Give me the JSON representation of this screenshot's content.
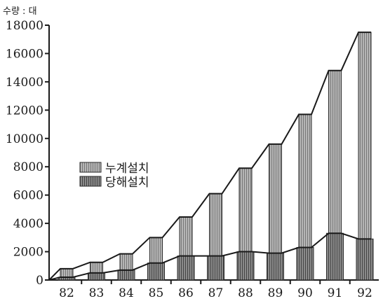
{
  "chart_data": {
    "type": "bar",
    "title": "",
    "unit_label": "수량 : 대",
    "xlabel": "",
    "ylabel": "",
    "ylim": [
      0,
      18000
    ],
    "yticks": [
      0,
      2000,
      4000,
      6000,
      8000,
      10000,
      12000,
      14000,
      16000,
      18000
    ],
    "categories": [
      "82",
      "83",
      "84",
      "85",
      "86",
      "87",
      "88",
      "89",
      "90",
      "91",
      "92"
    ],
    "legend_position": "middle-left",
    "series": [
      {
        "name": "누계설치",
        "values": [
          800,
          1250,
          1850,
          3000,
          4450,
          6100,
          7900,
          9600,
          11700,
          14800,
          17500
        ]
      },
      {
        "name": "당해설치",
        "values": [
          200,
          500,
          700,
          1200,
          1700,
          1700,
          2000,
          1900,
          2300,
          3300,
          2900
        ]
      }
    ],
    "colors": {
      "cumulative": "#a8a8a8",
      "annual": "#6e6e6e",
      "axis": "#1a1a1a"
    }
  }
}
